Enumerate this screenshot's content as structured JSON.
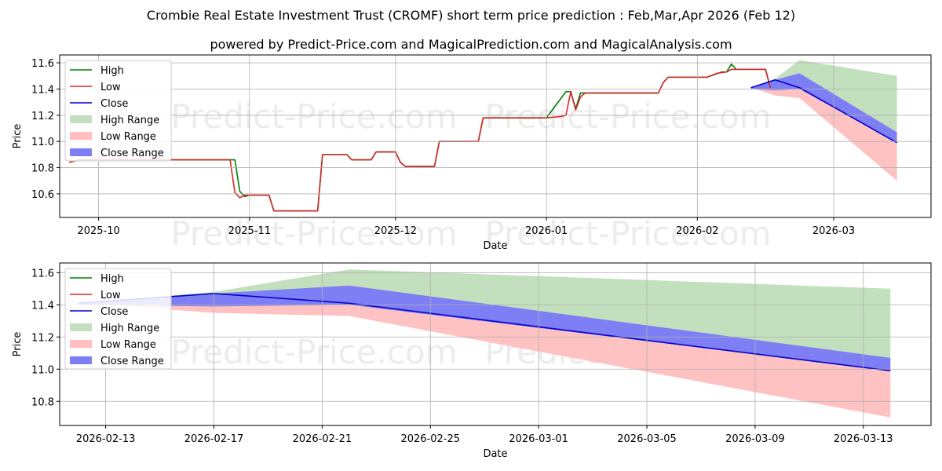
{
  "title": "Crombie Real Estate Investment Trust (CROMF) short term price prediction : Feb,Mar,Apr 2026 (Feb 12)",
  "subtitle": "powered by Predict-Price.com and MagicalPrediction.com and MagicalAnalysis.com",
  "watermark": "Predict-Price.com",
  "colors": {
    "high": "#008000",
    "low": "#d62728",
    "close": "#0000cc",
    "high_range": "#c2e0bd",
    "low_range": "#ffbfbf",
    "close_range": "#7f7ff5"
  },
  "chart_data": [
    {
      "type": "line",
      "name": "full",
      "xlabel": "Date",
      "ylabel": "Price",
      "xlim": [
        "2025-09-23",
        "2026-03-21"
      ],
      "ylim": [
        10.42,
        11.66
      ],
      "yticks": [
        10.6,
        10.8,
        11.0,
        11.2,
        11.4,
        11.6
      ],
      "ytick_labels": [
        "10.6",
        "10.8",
        "11.0",
        "11.2",
        "11.4",
        "11.6"
      ],
      "xticks": [
        "2025-10-01",
        "2025-11-01",
        "2025-12-01",
        "2026-01-01",
        "2026-02-01",
        "2026-03-01"
      ],
      "xtick_labels": [
        "2025-10",
        "2025-11",
        "2025-12",
        "2026-01",
        "2026-02",
        "2026-03"
      ],
      "grid": true,
      "legend": "upper-left",
      "legend_entries": [
        "High",
        "Low",
        "Close",
        "High Range",
        "Low Range",
        "Close Range"
      ],
      "series": [
        {
          "name": "High",
          "points": [
            [
              "2025-09-25",
              10.84
            ],
            [
              "2025-09-27",
              10.86
            ],
            [
              "2025-10-28",
              10.86
            ],
            [
              "2025-10-29",
              10.86
            ],
            [
              "2025-10-30",
              10.62
            ],
            [
              "2025-10-31",
              10.58
            ],
            [
              "2025-11-01",
              10.59
            ],
            [
              "2025-11-05",
              10.59
            ],
            [
              "2025-11-06",
              10.47
            ],
            [
              "2025-11-15",
              10.47
            ],
            [
              "2025-11-16",
              10.9
            ],
            [
              "2025-11-21",
              10.9
            ],
            [
              "2025-11-22",
              10.86
            ],
            [
              "2025-11-26",
              10.86
            ],
            [
              "2025-11-27",
              10.92
            ],
            [
              "2025-12-01",
              10.92
            ],
            [
              "2025-12-02",
              10.84
            ],
            [
              "2025-12-03",
              10.81
            ],
            [
              "2025-12-09",
              10.81
            ],
            [
              "2025-12-10",
              11.0
            ],
            [
              "2025-12-18",
              11.0
            ],
            [
              "2025-12-19",
              11.18
            ],
            [
              "2026-01-01",
              11.18
            ],
            [
              "2026-01-05",
              11.38
            ],
            [
              "2026-01-06",
              11.38
            ],
            [
              "2026-01-07",
              11.25
            ],
            [
              "2026-01-08",
              11.37
            ],
            [
              "2026-01-24",
              11.37
            ],
            [
              "2026-01-25",
              11.45
            ],
            [
              "2026-01-26",
              11.49
            ],
            [
              "2026-02-03",
              11.49
            ],
            [
              "2026-02-06",
              11.53
            ],
            [
              "2026-02-07",
              11.53
            ],
            [
              "2026-02-08",
              11.59
            ],
            [
              "2026-02-09",
              11.55
            ],
            [
              "2026-02-15",
              11.55
            ],
            [
              "2026-02-16",
              11.41
            ]
          ]
        },
        {
          "name": "Low",
          "points": [
            [
              "2025-09-25",
              10.84
            ],
            [
              "2025-09-27",
              10.86
            ],
            [
              "2025-10-28",
              10.86
            ],
            [
              "2025-10-29",
              10.61
            ],
            [
              "2025-10-30",
              10.57
            ],
            [
              "2025-10-31",
              10.59
            ],
            [
              "2025-11-05",
              10.59
            ],
            [
              "2025-11-06",
              10.47
            ],
            [
              "2025-11-15",
              10.47
            ],
            [
              "2025-11-16",
              10.9
            ],
            [
              "2025-11-21",
              10.9
            ],
            [
              "2025-11-22",
              10.86
            ],
            [
              "2025-11-26",
              10.86
            ],
            [
              "2025-11-27",
              10.92
            ],
            [
              "2025-12-01",
              10.92
            ],
            [
              "2025-12-02",
              10.84
            ],
            [
              "2025-12-03",
              10.81
            ],
            [
              "2025-12-09",
              10.81
            ],
            [
              "2025-12-10",
              11.0
            ],
            [
              "2025-12-18",
              11.0
            ],
            [
              "2025-12-19",
              11.18
            ],
            [
              "2026-01-01",
              11.18
            ],
            [
              "2026-01-04",
              11.19
            ],
            [
              "2026-01-05",
              11.2
            ],
            [
              "2026-01-06",
              11.38
            ],
            [
              "2026-01-07",
              11.24
            ],
            [
              "2026-01-08",
              11.34
            ],
            [
              "2026-01-09",
              11.37
            ],
            [
              "2026-01-24",
              11.37
            ],
            [
              "2026-01-25",
              11.45
            ],
            [
              "2026-01-26",
              11.49
            ],
            [
              "2026-02-03",
              11.49
            ],
            [
              "2026-02-05",
              11.52
            ],
            [
              "2026-02-07",
              11.53
            ],
            [
              "2026-02-08",
              11.55
            ],
            [
              "2026-02-15",
              11.55
            ],
            [
              "2026-02-16",
              11.41
            ]
          ]
        },
        {
          "name": "Close",
          "points": [
            [
              "2026-02-12",
              11.41
            ],
            [
              "2026-02-17",
              11.47
            ],
            [
              "2026-02-22",
              11.41
            ],
            [
              "2026-03-14",
              10.99
            ]
          ]
        }
      ],
      "bands": [
        {
          "name": "High Range",
          "points": [
            [
              "2026-02-12",
              11.41,
              11.41
            ],
            [
              "2026-02-17",
              11.47,
              11.48
            ],
            [
              "2026-02-22",
              11.41,
              11.62
            ],
            [
              "2026-03-14",
              11.06,
              11.5
            ]
          ]
        },
        {
          "name": "Low Range",
          "points": [
            [
              "2026-02-12",
              11.41,
              11.41
            ],
            [
              "2026-02-17",
              11.35,
              11.47
            ],
            [
              "2026-02-22",
              11.33,
              11.41
            ],
            [
              "2026-03-14",
              10.7,
              10.99
            ]
          ]
        },
        {
          "name": "Close Range",
          "points": [
            [
              "2026-02-12",
              11.4,
              11.41
            ],
            [
              "2026-02-17",
              11.39,
              11.47
            ],
            [
              "2026-02-22",
              11.4,
              11.52
            ],
            [
              "2026-03-14",
              10.99,
              11.07
            ]
          ]
        }
      ]
    },
    {
      "type": "line",
      "name": "zoom",
      "xlabel": "Date",
      "ylabel": "Price",
      "xlim": [
        "2026-02-11.3",
        "2026-03-15.5"
      ],
      "ylim": [
        10.65,
        11.66
      ],
      "yticks": [
        10.8,
        11.0,
        11.2,
        11.4,
        11.6
      ],
      "ytick_labels": [
        "10.8",
        "11.0",
        "11.2",
        "11.4",
        "11.6"
      ],
      "xticks": [
        "2026-02-13",
        "2026-02-17",
        "2026-02-21",
        "2026-02-25",
        "2026-03-01",
        "2026-03-05",
        "2026-03-09",
        "2026-03-13"
      ],
      "xtick_labels": [
        "2026-02-13",
        "2026-02-17",
        "2026-02-21",
        "2026-02-25",
        "2026-03-01",
        "2026-03-05",
        "2026-03-09",
        "2026-03-13"
      ],
      "grid": true,
      "legend": "upper-left",
      "legend_entries": [
        "High",
        "Low",
        "Close",
        "High Range",
        "Low Range",
        "Close Range"
      ],
      "series": [
        {
          "name": "Close",
          "points": [
            [
              "2026-02-12",
              11.41
            ],
            [
              "2026-02-17",
              11.47
            ],
            [
              "2026-02-22",
              11.41
            ],
            [
              "2026-03-14",
              10.99
            ]
          ]
        }
      ],
      "bands": [
        {
          "name": "High Range",
          "points": [
            [
              "2026-02-12",
              11.41,
              11.41
            ],
            [
              "2026-02-17",
              11.47,
              11.48
            ],
            [
              "2026-02-22",
              11.41,
              11.62
            ],
            [
              "2026-03-14",
              11.06,
              11.5
            ]
          ]
        },
        {
          "name": "Low Range",
          "points": [
            [
              "2026-02-12",
              11.41,
              11.41
            ],
            [
              "2026-02-17",
              11.35,
              11.47
            ],
            [
              "2026-02-22",
              11.33,
              11.41
            ],
            [
              "2026-03-14",
              10.7,
              10.99
            ]
          ]
        },
        {
          "name": "Close Range",
          "points": [
            [
              "2026-02-12",
              11.4,
              11.41
            ],
            [
              "2026-02-17",
              11.39,
              11.47
            ],
            [
              "2026-02-22",
              11.4,
              11.52
            ],
            [
              "2026-03-14",
              10.99,
              11.07
            ]
          ]
        }
      ]
    }
  ]
}
